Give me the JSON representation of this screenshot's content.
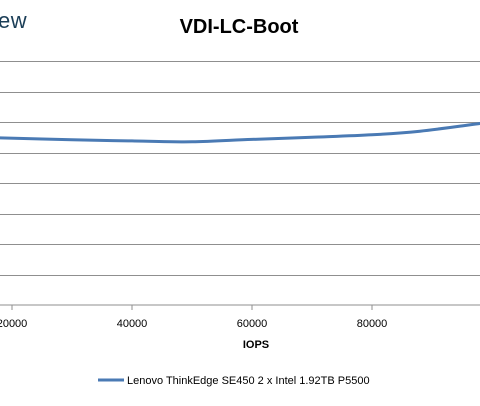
{
  "logo_text": "ew",
  "chart_data": {
    "type": "line",
    "title": "VDI-LC-Boot",
    "xlabel": "IOPS",
    "ylabel": "",
    "xlim": [
      18000,
      98000
    ],
    "ylim": [
      0,
      1
    ],
    "x_ticks": [
      20000,
      40000,
      60000,
      80000
    ],
    "x_tick_labels": [
      "20000",
      "40000",
      "60000",
      "80000"
    ],
    "y_gridlines": [
      0.1,
      0.2,
      0.3,
      0.4,
      0.5,
      0.6,
      0.7,
      0.8
    ],
    "grid": true,
    "legend_position": "bottom",
    "series": [
      {
        "name": "Lenovo ThinkEdge SE450 2 x Intel 1.92TB P5500",
        "color": "#4a7ab4",
        "points": [
          [
            18000,
            0.548
          ],
          [
            30000,
            0.542
          ],
          [
            40000,
            0.538
          ],
          [
            50000,
            0.535
          ],
          [
            60000,
            0.543
          ],
          [
            70000,
            0.55
          ],
          [
            80000,
            0.558
          ],
          [
            88000,
            0.57
          ],
          [
            98000,
            0.595
          ]
        ]
      }
    ]
  }
}
